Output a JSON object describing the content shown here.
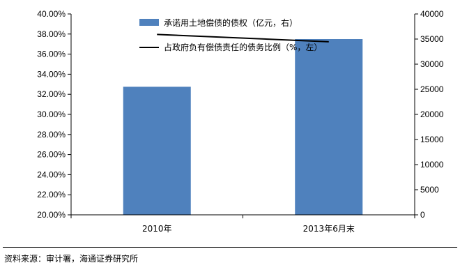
{
  "chart_data": {
    "type": "bar+line",
    "categories": [
      "2010年",
      "2013年6月末"
    ],
    "series": [
      {
        "name": "承诺用土地偿债的债权（亿元，右）",
        "kind": "bar",
        "axis": "right",
        "color": "#4f81bd",
        "values": [
          25500,
          35000
        ]
      },
      {
        "name": "占政府负有偿债责任的债务比例（%，左）",
        "kind": "line",
        "axis": "left",
        "color": "#000000",
        "values": [
          37.96,
          37.23
        ]
      }
    ],
    "left_axis": {
      "min": 20,
      "max": 40,
      "step": 2,
      "tick_labels": [
        "20.00%",
        "22.00%",
        "24.00%",
        "26.00%",
        "28.00%",
        "30.00%",
        "32.00%",
        "34.00%",
        "36.00%",
        "38.00%",
        "40.00%"
      ]
    },
    "right_axis": {
      "min": 0,
      "max": 40000,
      "step": 5000,
      "tick_labels": [
        "0",
        "5000",
        "10000",
        "15000",
        "20000",
        "25000",
        "30000",
        "35000",
        "40000"
      ]
    },
    "legend_position": "top-center",
    "grid": false
  },
  "source_note": "资料来源：审计署，海通证券研究所"
}
